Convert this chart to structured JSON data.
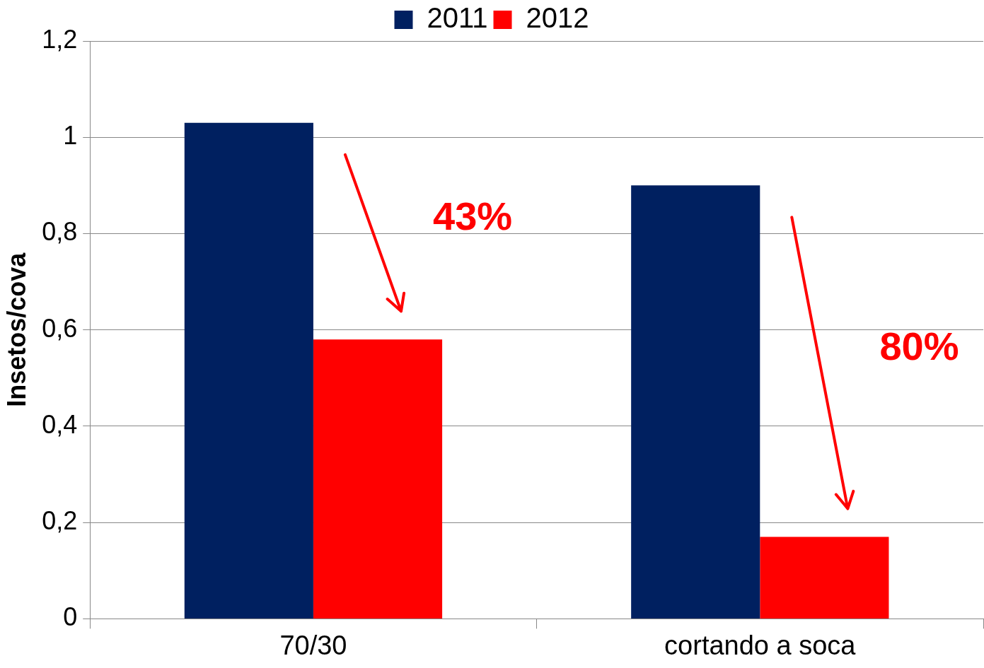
{
  "chart_data": {
    "type": "bar",
    "ylabel": "Insetos/cova",
    "categories": [
      "70/30",
      "cortando a soca"
    ],
    "series": [
      {
        "name": "2011",
        "color": "#002060",
        "values": [
          1.03,
          0.9
        ]
      },
      {
        "name": "2012",
        "color": "#ff0000",
        "values": [
          0.58,
          0.17
        ]
      }
    ],
    "ylim": [
      0,
      1.2
    ],
    "yticks": [
      0,
      {
        "value": 0.2,
        "label": "0,2"
      },
      {
        "value": 0.4,
        "label": "0,4"
      },
      {
        "value": 0.6,
        "label": "0,6"
      },
      {
        "value": 0.8,
        "label": "0,8"
      },
      1,
      {
        "value": 1.2,
        "label": "1,2"
      }
    ],
    "grid": "y",
    "legend": "top",
    "annotations": [
      "43%",
      "80%"
    ]
  }
}
